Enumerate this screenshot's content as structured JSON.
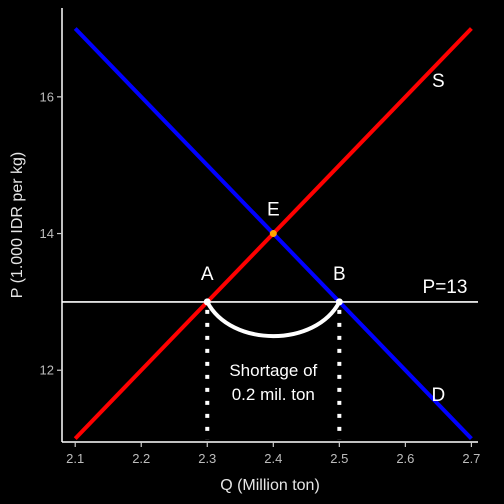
{
  "chart_data": {
    "type": "line",
    "title": "",
    "xlabel": "Q (Million ton)",
    "ylabel": "P (1.000 IDR per kg)",
    "xlim": [
      2.08,
      2.71
    ],
    "ylim": [
      10.95,
      17.3
    ],
    "x_ticks": [
      2.1,
      2.2,
      2.3,
      2.4,
      2.5,
      2.6,
      2.7
    ],
    "x_tick_labels": [
      "2.1",
      "2.2",
      "2.3",
      "2.4",
      "2.5",
      "2.6",
      "2.7"
    ],
    "y_ticks": [
      12,
      14,
      16
    ],
    "y_tick_labels": [
      "12",
      "14",
      "16"
    ],
    "grid": false,
    "series": [
      {
        "name": "S",
        "color": "#ff0000",
        "x": [
          2.1,
          2.7
        ],
        "y": [
          11,
          17
        ]
      },
      {
        "name": "D",
        "color": "#0000ff",
        "x": [
          2.1,
          2.7
        ],
        "y": [
          17,
          11
        ]
      }
    ],
    "price_line": {
      "y": 13,
      "label": "P=13",
      "color": "#ffffff"
    },
    "points": [
      {
        "label": "E",
        "x": 2.4,
        "y": 14,
        "color": "#ffa500"
      },
      {
        "label": "A",
        "x": 2.3,
        "y": 13,
        "color": "#ffffff"
      },
      {
        "label": "B",
        "x": 2.5,
        "y": 13,
        "color": "#ffffff"
      }
    ],
    "shortage": {
      "from_x": 2.3,
      "to_x": 2.5,
      "y": 13,
      "arc_bottom_y": 12.5,
      "label_line1": "Shortage of",
      "label_line2": "0.2 mil. ton"
    },
    "curve_labels": {
      "supply": "S",
      "demand": "D"
    }
  }
}
